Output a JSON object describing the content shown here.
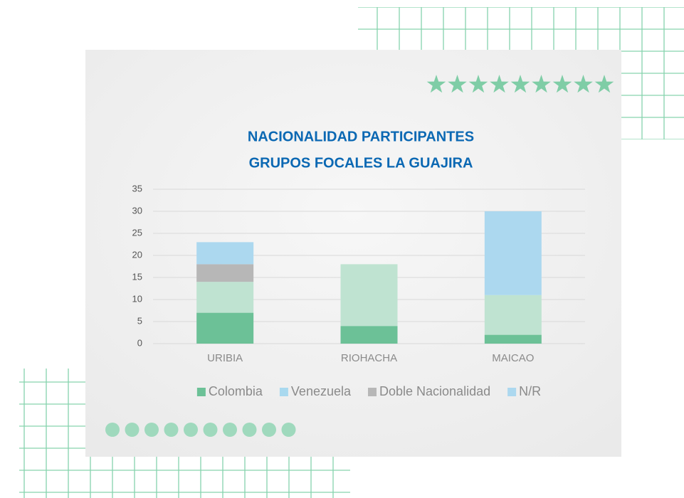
{
  "chart_data": {
    "type": "bar",
    "stacked": true,
    "title": [
      "NACIONALIDAD PARTICIPANTES",
      "GRUPOS FOCALES LA GUAJIRA"
    ],
    "categories": [
      "URIBIA",
      "RIOHACHA",
      "MAICAO"
    ],
    "series": [
      {
        "name": "Colombia",
        "color": "#6cc197",
        "legend_color": "#6cc197",
        "values": [
          7,
          4,
          2
        ]
      },
      {
        "name": "Venezuela",
        "color": "#bfe3d1",
        "legend_color": "#a9d9ef",
        "values": [
          7,
          14,
          9
        ]
      },
      {
        "name": "Doble Nacionalidad",
        "color": "#b7b7b7",
        "legend_color": "#b7b7b7",
        "values": [
          4,
          0,
          0
        ]
      },
      {
        "name": "N/R",
        "color": "#acd8ef",
        "legend_color": "#acd8ef",
        "values": [
          5,
          0,
          19
        ]
      }
    ],
    "ylim": [
      0,
      35
    ],
    "yticks": [
      0,
      5,
      10,
      15,
      20,
      25,
      30,
      35
    ],
    "grid": true,
    "legend": "bottom"
  }
}
